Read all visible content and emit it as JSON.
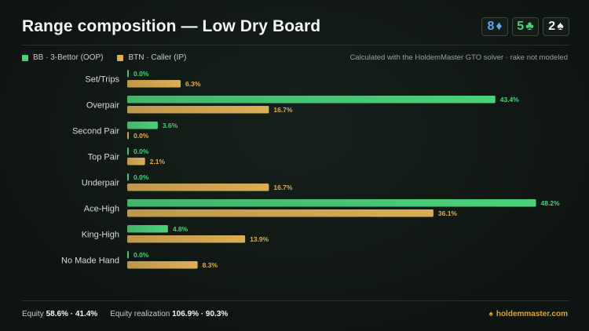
{
  "title": "Range composition — Low Dry Board",
  "board": [
    {
      "rank": "8",
      "suit": "♦",
      "color": "#5aa8f0"
    },
    {
      "rank": "5",
      "suit": "♣",
      "color": "#4cd07a"
    },
    {
      "rank": "2",
      "suit": "♠",
      "color": "#f2f2f2"
    }
  ],
  "legend": {
    "bb_label": "BB · 3-Bettor (OOP)",
    "btn_label": "BTN · Caller (IP)"
  },
  "note": "Calculated with the HoldemMaster GTO solver · rake not modeled",
  "chart_data": {
    "type": "bar",
    "orientation": "horizontal",
    "title": "Range composition — Low Dry Board",
    "categories": [
      "Set/Trips",
      "Overpair",
      "Second Pair",
      "Top Pair",
      "Underpair",
      "Ace-High",
      "King-High",
      "No Made Hand"
    ],
    "series": [
      {
        "name": "BB · 3-Bettor (OOP)",
        "color": "#4cd07a",
        "values": [
          0.0,
          43.4,
          3.6,
          0.0,
          0.0,
          48.2,
          4.8,
          0.0
        ]
      },
      {
        "name": "BTN · Caller (IP)",
        "color": "#dcae55",
        "values": [
          6.3,
          16.7,
          0.0,
          2.1,
          16.7,
          36.1,
          13.9,
          8.3
        ]
      }
    ],
    "unit": "%",
    "xlim": [
      0,
      50
    ],
    "grid": false,
    "legend_position": "top-left"
  },
  "footer": {
    "equity_label": "Equity",
    "equity_values": "58.6% · 41.4%",
    "realization_label": "Equity realization",
    "realization_values": "106.9% · 90.3%",
    "brand_icon": "♠",
    "brand": "holdemmaster.com"
  }
}
